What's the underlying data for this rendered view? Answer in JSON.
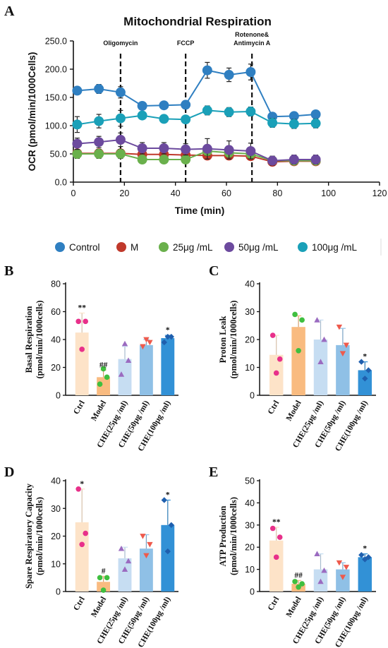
{
  "panel_letters": [
    "A",
    "B",
    "C",
    "D",
    "E"
  ],
  "chart_data": [
    {
      "panel": "A",
      "type": "line",
      "title": "Mitochondrial Respiration",
      "xlabel": "Time (min)",
      "ylabel": "OCR (pmol/min/1000Cells)",
      "xlim": [
        0,
        120
      ],
      "ylim": [
        0,
        250
      ],
      "x_ticks": [
        0,
        20,
        40,
        60,
        80,
        100,
        120
      ],
      "y_ticks": [
        "0.0",
        "50.0",
        "100.0",
        "150.0",
        "200.0",
        "250.0"
      ],
      "injections": [
        {
          "label": "Oligomycin",
          "x": 18.5
        },
        {
          "label": "FCCP",
          "x": 44
        },
        {
          "label": "Rotenone&",
          "label2": "Antimycin A",
          "x": 70
        }
      ],
      "x": [
        1.5,
        10,
        18.5,
        27,
        35.5,
        44,
        52.5,
        61,
        69.5,
        78,
        86.5,
        95
      ],
      "series": [
        {
          "name": "Control",
          "color": "#2f7fc1",
          "values": [
            162,
            165,
            159,
            135,
            136,
            137,
            198,
            190,
            195,
            116,
            117,
            120
          ],
          "err": [
            6,
            8,
            10,
            4,
            4,
            4,
            14,
            12,
            14,
            6,
            5,
            6
          ]
        },
        {
          "name": "M",
          "color": "#c0392b",
          "values": [
            51,
            51,
            51,
            49,
            49,
            48,
            47,
            47,
            46,
            36,
            37,
            37
          ],
          "err": [
            4,
            4,
            4,
            4,
            4,
            4,
            6,
            6,
            6,
            4,
            4,
            4
          ]
        },
        {
          "name": "25μg /mL",
          "color": "#6ab04c",
          "values": [
            50,
            50,
            50,
            40,
            40,
            40,
            55,
            52,
            50,
            38,
            38,
            38
          ],
          "err": [
            8,
            8,
            8,
            6,
            6,
            6,
            8,
            8,
            8,
            5,
            5,
            5
          ]
        },
        {
          "name": "50μg /mL",
          "color": "#6c4a9e",
          "values": [
            68,
            71,
            75,
            60,
            60,
            58,
            59,
            57,
            55,
            38,
            40,
            40
          ],
          "err": [
            10,
            10,
            12,
            10,
            10,
            10,
            18,
            16,
            14,
            8,
            8,
            8
          ]
        },
        {
          "name": "100μg /mL",
          "color": "#1aa0b8",
          "values": [
            102,
            108,
            113,
            118,
            112,
            111,
            127,
            124,
            125,
            105,
            103,
            104
          ],
          "err": [
            14,
            12,
            14,
            6,
            6,
            6,
            8,
            8,
            8,
            8,
            8,
            8
          ]
        }
      ]
    },
    {
      "panel": "B",
      "type": "bar",
      "ylabel": "Basal Respiration",
      "ylabel2": "(pmol/min/1000cells)",
      "ylim": [
        0,
        80
      ],
      "y_ticks": [
        "0",
        "20",
        "40",
        "60",
        "80"
      ],
      "categories": [
        "Ctrl",
        "Model",
        "CHE(25μg /ml)",
        "CHE(50μg /ml)",
        "CHE(100μg /ml)"
      ],
      "values": [
        45,
        13,
        26,
        36,
        41
      ],
      "err": [
        14,
        5,
        9,
        4,
        2
      ],
      "points": [
        [
          53,
          53,
          33
        ],
        [
          8,
          13,
          19
        ],
        [
          15,
          25,
          37
        ],
        [
          35,
          38,
          40
        ],
        [
          38,
          42,
          42
        ]
      ],
      "sig": [
        "**",
        "##",
        "",
        "",
        "*"
      ]
    },
    {
      "panel": "C",
      "type": "bar",
      "ylabel": "Proton Leak",
      "ylabel2": "(pmol/min/1000cells)",
      "ylim": [
        0,
        40
      ],
      "y_ticks": [
        "0",
        "10",
        "20",
        "30",
        "40"
      ],
      "categories": [
        "Ctrl",
        "Model",
        "CHE(25μg /ml)",
        "CHE(50μg /ml)",
        "CHE(100μg /ml)"
      ],
      "values": [
        14.5,
        24.5,
        20,
        18,
        9
      ],
      "err": [
        7,
        4,
        7,
        6,
        3
      ],
      "points": [
        [
          21.5,
          13,
          8
        ],
        [
          29,
          27,
          16
        ],
        [
          27,
          20,
          12
        ],
        [
          24.5,
          18,
          15
        ],
        [
          12,
          9,
          6
        ]
      ],
      "sig": [
        "",
        "",
        "",
        "",
        "*"
      ]
    },
    {
      "panel": "D",
      "type": "bar",
      "ylabel": "Spare Respiratory Capacity",
      "ylabel2": "(pmol/min/1000cells)",
      "ylim": [
        0,
        40
      ],
      "y_ticks": [
        "0",
        "10",
        "20",
        "30",
        "40"
      ],
      "categories": [
        "Ctrl",
        "Model",
        "CHE(25μg /ml)",
        "CHE(50μg /ml)",
        "CHE(100μg /ml)"
      ],
      "values": [
        25,
        3.5,
        12,
        15.5,
        24
      ],
      "err": [
        12,
        2,
        4,
        5,
        9
      ],
      "points": [
        [
          37,
          21,
          17
        ],
        [
          5,
          5,
          0.5
        ],
        [
          15.5,
          11,
          8
        ],
        [
          20,
          17,
          13
        ],
        [
          33,
          24,
          14.5
        ]
      ],
      "sig": [
        "*",
        "#",
        "",
        "",
        "*"
      ]
    },
    {
      "panel": "E",
      "type": "bar",
      "ylabel": "ATP Production",
      "ylabel2": "(pmol/min/1000cells)",
      "ylim": [
        0,
        50
      ],
      "y_ticks": [
        "0",
        "10",
        "20",
        "30",
        "40",
        "50"
      ],
      "categories": [
        "Ctrl",
        "Model",
        "CHE(25μg /ml)",
        "CHE(50μg /ml)",
        "CHE(100μg /ml)"
      ],
      "values": [
        23,
        3.5,
        10,
        10,
        15.5
      ],
      "err": [
        6,
        1.5,
        7,
        3,
        1.5
      ],
      "points": [
        [
          28.5,
          24.5,
          15.5
        ],
        [
          4.5,
          3.5,
          2
        ],
        [
          17,
          9.5,
          4.5
        ],
        [
          13,
          11,
          6.5
        ],
        [
          16.5,
          15.5,
          14.5
        ]
      ],
      "sig": [
        "**",
        "##",
        "",
        "",
        "*"
      ]
    }
  ],
  "bar_style": {
    "fills": [
      "#fde3c8",
      "#f9bb80",
      "#c6ddf2",
      "#8fc0e6",
      "#3291d6"
    ],
    "dot_colors": [
      "#e8308a",
      "#3fbf3f",
      "#9b6bc0",
      "#ee5a4c",
      "#1f5fae"
    ],
    "markers": [
      "circle",
      "circle",
      "triangle-up",
      "triangle-down",
      "diamond"
    ]
  }
}
